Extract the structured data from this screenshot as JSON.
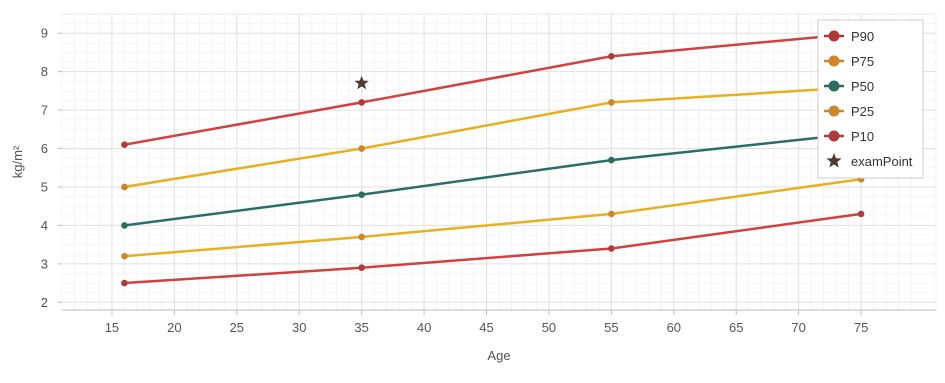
{
  "chart_data": {
    "type": "line",
    "xlabel": "Age",
    "ylabel": "kg/m²",
    "xlim": [
      11,
      81
    ],
    "ylim": [
      1.8,
      9.5
    ],
    "xticks": [
      15,
      20,
      25,
      30,
      35,
      40,
      45,
      50,
      55,
      60,
      65,
      70,
      75
    ],
    "yticks": [
      2,
      3,
      4,
      5,
      6,
      7,
      8,
      9
    ],
    "grid": true,
    "legend_position": "top-right",
    "series": [
      {
        "name": "P90",
        "color": "#d24040",
        "marker_color": "#b03a3a",
        "marker": "circle",
        "x": [
          16,
          35,
          55,
          75
        ],
        "y": [
          6.1,
          7.2,
          8.4,
          9.0
        ]
      },
      {
        "name": "P75",
        "color": "#e8b020",
        "marker_color": "#d0832a",
        "marker": "circle",
        "x": [
          16,
          35,
          55,
          75
        ],
        "y": [
          5.0,
          6.0,
          7.2,
          7.6
        ]
      },
      {
        "name": "P50",
        "color": "#2a6e66",
        "marker_color": "#2d6b5d",
        "marker": "circle",
        "x": [
          16,
          35,
          55,
          75
        ],
        "y": [
          4.0,
          4.8,
          5.7,
          6.4
        ]
      },
      {
        "name": "P25",
        "color": "#e8b020",
        "marker_color": "#c9882f",
        "marker": "circle",
        "x": [
          16,
          35,
          55,
          75
        ],
        "y": [
          3.2,
          3.7,
          4.3,
          5.2
        ]
      },
      {
        "name": "P10",
        "color": "#d24040",
        "marker_color": "#b03a3a",
        "marker": "circle",
        "x": [
          16,
          35,
          55,
          75
        ],
        "y": [
          2.5,
          2.9,
          3.4,
          4.3
        ]
      },
      {
        "name": "examPoint",
        "color": "#4a3a33",
        "marker_color": "#4a3a33",
        "marker": "star",
        "x": [
          35
        ],
        "y": [
          7.7
        ]
      }
    ]
  }
}
